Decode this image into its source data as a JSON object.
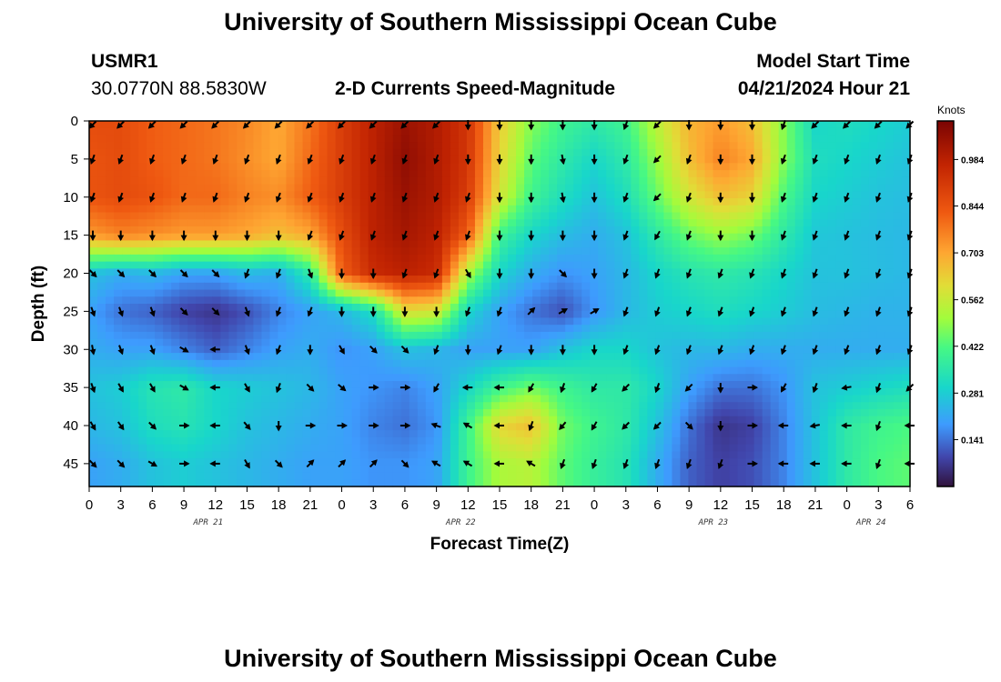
{
  "header": {
    "title": "University of Southern Mississippi Ocean Cube",
    "station_id": "USMR1",
    "station_coords": "30.0770N  88.5830W",
    "chart_title": "2-D Currents Speed-Magnitude",
    "model_start_label": "Model Start Time",
    "model_start_value": "04/21/2024 Hour 21"
  },
  "footer": {
    "title": "University of Southern Mississippi Ocean Cube"
  },
  "chart_data": {
    "type": "heatmap",
    "title": "2-D Currents Speed-Magnitude",
    "xlabel": "Forecast Time(Z)",
    "ylabel": "Depth (ft)",
    "x_hours_from_apr21_00": [
      0,
      3,
      6,
      9,
      12,
      15,
      18,
      21,
      24,
      27,
      30,
      33,
      36,
      39,
      42,
      45,
      48,
      51,
      54,
      57,
      60,
      63,
      66,
      69,
      72,
      75,
      78
    ],
    "x_tick_labels": [
      "0",
      "3",
      "6",
      "9",
      "12",
      "15",
      "18",
      "21",
      "0",
      "3",
      "6",
      "9",
      "12",
      "15",
      "18",
      "21",
      "0",
      "3",
      "6",
      "9",
      "12",
      "15",
      "18",
      "21",
      "0",
      "3",
      "6"
    ],
    "date_labels": [
      {
        "label": "APR 21",
        "hour": 12
      },
      {
        "label": "APR 22",
        "hour": 36
      },
      {
        "label": "APR 23",
        "hour": 60
      },
      {
        "label": "APR 24",
        "hour": 75
      }
    ],
    "y_ticks": [
      0,
      5,
      10,
      15,
      20,
      25,
      30,
      35,
      40,
      45
    ],
    "ylim": [
      0,
      48
    ],
    "xlim": [
      0,
      78
    ],
    "colorbar": {
      "label": "Knots",
      "ticks": [
        0.141,
        0.281,
        0.422,
        0.562,
        0.703,
        0.844,
        0.984
      ],
      "range": [
        0,
        1.1
      ]
    },
    "depths_ft": [
      0,
      5,
      10,
      15,
      20,
      25,
      30,
      35,
      40,
      45
    ],
    "speed_knots": [
      [
        0.86,
        0.86,
        0.82,
        0.8,
        0.78,
        0.75,
        0.7,
        0.78,
        0.9,
        0.98,
        1.04,
        1.0,
        0.92,
        0.64,
        0.48,
        0.4,
        0.36,
        0.4,
        0.55,
        0.68,
        0.72,
        0.66,
        0.48,
        0.3,
        0.32,
        0.3,
        0.28
      ],
      [
        0.84,
        0.86,
        0.82,
        0.8,
        0.78,
        0.74,
        0.7,
        0.8,
        0.9,
        0.98,
        1.06,
        1.0,
        0.92,
        0.62,
        0.44,
        0.36,
        0.3,
        0.36,
        0.5,
        0.66,
        0.76,
        0.7,
        0.48,
        0.32,
        0.3,
        0.28,
        0.26
      ],
      [
        0.84,
        0.86,
        0.84,
        0.8,
        0.8,
        0.76,
        0.74,
        0.82,
        0.9,
        0.98,
        1.04,
        1.0,
        0.9,
        0.58,
        0.4,
        0.32,
        0.26,
        0.32,
        0.45,
        0.58,
        0.66,
        0.62,
        0.42,
        0.3,
        0.28,
        0.26,
        0.25
      ],
      [
        0.72,
        0.76,
        0.74,
        0.72,
        0.72,
        0.7,
        0.66,
        0.7,
        0.86,
        0.98,
        1.02,
        0.98,
        0.82,
        0.4,
        0.3,
        0.25,
        0.22,
        0.26,
        0.36,
        0.45,
        0.5,
        0.46,
        0.36,
        0.27,
        0.26,
        0.25,
        0.24
      ],
      [
        0.26,
        0.22,
        0.24,
        0.2,
        0.2,
        0.24,
        0.22,
        0.36,
        0.82,
        0.95,
        0.98,
        0.95,
        0.52,
        0.3,
        0.22,
        0.18,
        0.2,
        0.24,
        0.3,
        0.34,
        0.36,
        0.34,
        0.3,
        0.26,
        0.26,
        0.25,
        0.24
      ],
      [
        0.2,
        0.14,
        0.12,
        0.08,
        0.06,
        0.1,
        0.16,
        0.2,
        0.24,
        0.32,
        0.6,
        0.58,
        0.3,
        0.2,
        0.14,
        0.1,
        0.18,
        0.24,
        0.28,
        0.3,
        0.32,
        0.3,
        0.28,
        0.25,
        0.24,
        0.23,
        0.23
      ],
      [
        0.22,
        0.2,
        0.2,
        0.16,
        0.12,
        0.16,
        0.2,
        0.22,
        0.18,
        0.2,
        0.26,
        0.24,
        0.2,
        0.2,
        0.2,
        0.26,
        0.3,
        0.3,
        0.26,
        0.24,
        0.24,
        0.22,
        0.22,
        0.22,
        0.22,
        0.22,
        0.22
      ],
      [
        0.26,
        0.28,
        0.34,
        0.36,
        0.3,
        0.28,
        0.26,
        0.24,
        0.2,
        0.18,
        0.16,
        0.2,
        0.3,
        0.4,
        0.46,
        0.4,
        0.36,
        0.36,
        0.3,
        0.2,
        0.14,
        0.14,
        0.18,
        0.26,
        0.28,
        0.3,
        0.32
      ],
      [
        0.24,
        0.26,
        0.32,
        0.34,
        0.3,
        0.26,
        0.24,
        0.22,
        0.2,
        0.16,
        0.14,
        0.18,
        0.4,
        0.62,
        0.66,
        0.46,
        0.4,
        0.36,
        0.26,
        0.14,
        0.06,
        0.08,
        0.16,
        0.26,
        0.36,
        0.4,
        0.42
      ],
      [
        0.2,
        0.22,
        0.26,
        0.28,
        0.26,
        0.24,
        0.22,
        0.2,
        0.2,
        0.18,
        0.18,
        0.2,
        0.4,
        0.52,
        0.54,
        0.44,
        0.38,
        0.34,
        0.22,
        0.12,
        0.08,
        0.1,
        0.16,
        0.26,
        0.36,
        0.42,
        0.44
      ]
    ],
    "direction_deg": [
      [
        225,
        225,
        225,
        225,
        225,
        225,
        225,
        225,
        225,
        225,
        225,
        225,
        180,
        180,
        180,
        180,
        180,
        200,
        225,
        180,
        180,
        180,
        200,
        225,
        225,
        225,
        225
      ],
      [
        200,
        200,
        200,
        200,
        200,
        200,
        200,
        200,
        200,
        200,
        200,
        200,
        180,
        180,
        180,
        170,
        180,
        200,
        225,
        200,
        180,
        180,
        200,
        200,
        200,
        200,
        200
      ],
      [
        200,
        200,
        200,
        200,
        200,
        200,
        200,
        200,
        200,
        200,
        200,
        200,
        200,
        180,
        180,
        170,
        180,
        200,
        225,
        200,
        180,
        180,
        200,
        200,
        200,
        200,
        200
      ],
      [
        180,
        180,
        180,
        180,
        180,
        180,
        180,
        200,
        200,
        200,
        200,
        200,
        200,
        180,
        180,
        180,
        180,
        200,
        210,
        200,
        180,
        180,
        200,
        200,
        200,
        200,
        200
      ],
      [
        135,
        135,
        135,
        135,
        135,
        200,
        200,
        160,
        180,
        180,
        200,
        200,
        150,
        180,
        180,
        135,
        180,
        200,
        200,
        200,
        200,
        200,
        200,
        200,
        200,
        200,
        200
      ],
      [
        160,
        160,
        160,
        135,
        135,
        160,
        200,
        200,
        180,
        180,
        180,
        180,
        200,
        200,
        45,
        60,
        60,
        200,
        200,
        200,
        200,
        200,
        200,
        200,
        200,
        200,
        200
      ],
      [
        170,
        160,
        160,
        120,
        270,
        160,
        200,
        180,
        150,
        135,
        135,
        200,
        180,
        200,
        180,
        180,
        180,
        200,
        200,
        200,
        200,
        200,
        200,
        200,
        200,
        200,
        200
      ],
      [
        160,
        150,
        150,
        120,
        270,
        150,
        200,
        135,
        130,
        90,
        90,
        210,
        270,
        270,
        210,
        200,
        210,
        225,
        200,
        225,
        180,
        90,
        210,
        200,
        260,
        200,
        225
      ],
      [
        150,
        145,
        135,
        90,
        270,
        140,
        180,
        90,
        90,
        90,
        90,
        290,
        300,
        270,
        200,
        220,
        210,
        225,
        225,
        135,
        180,
        90,
        270,
        260,
        270,
        200,
        270
      ],
      [
        135,
        135,
        120,
        90,
        270,
        150,
        135,
        45,
        45,
        45,
        135,
        300,
        300,
        270,
        300,
        200,
        200,
        200,
        200,
        200,
        200,
        90,
        270,
        270,
        270,
        200,
        270
      ]
    ]
  }
}
